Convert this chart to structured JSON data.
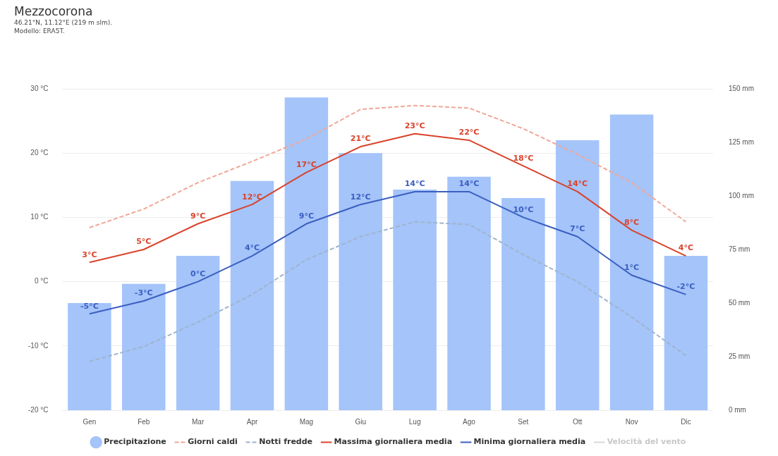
{
  "chart_data": {
    "type": "line",
    "title": "Mezzocorona",
    "subtitle": "46.21°N, 11.12°E (219 m slm).",
    "annotations": [
      "Modello: ERA5T."
    ],
    "categories": [
      "Gen",
      "Feb",
      "Mar",
      "Apr",
      "Mag",
      "Giu",
      "Lug",
      "Ago",
      "Set",
      "Ott",
      "Nov",
      "Dic"
    ],
    "series": [
      {
        "name": "Precipitazione",
        "type": "bar",
        "axis": "y2",
        "color": "#a4c4fa",
        "values": [
          50,
          59,
          72,
          107,
          146,
          120,
          103,
          109,
          99,
          126,
          138,
          72
        ]
      },
      {
        "name": "Giorni caldi",
        "line_style": "dashed",
        "color": "#f0a898",
        "values": [
          8.4,
          11.3,
          15.4,
          18.7,
          22.2,
          26.8,
          27.4,
          27,
          23.8,
          19.8,
          15.4,
          9.3
        ]
      },
      {
        "name": "Notti fredde",
        "line_style": "dashed",
        "color": "#a0b4cc",
        "values": [
          -12.4,
          -10.1,
          -6.3,
          -2,
          3.4,
          7,
          9.3,
          8.9,
          4.2,
          0,
          -5.5,
          -11.5
        ]
      },
      {
        "name": "Massima giornaliera media",
        "line_style": "solid",
        "color": "#d9432b",
        "values": [
          3,
          5,
          9,
          12,
          17,
          21,
          23,
          22,
          18,
          14,
          8,
          4
        ],
        "value_labels": [
          "3°C",
          "5°C",
          "9°C",
          "12°C",
          "17°C",
          "21°C",
          "23°C",
          "22°C",
          "18°C",
          "14°C",
          "8°C",
          "4°C"
        ]
      },
      {
        "name": "Minima giornaliera media",
        "line_style": "solid",
        "color": "#3b5fc0",
        "values": [
          -5,
          -3,
          0,
          4,
          9,
          12,
          14,
          14,
          10,
          7,
          1,
          -2
        ],
        "value_labels": [
          "-5°C",
          "-3°C",
          "0°C",
          "4°C",
          "9°C",
          "12°C",
          "14°C",
          "14°C",
          "10°C",
          "7°C",
          "1°C",
          "-2°C"
        ]
      },
      {
        "name": "Velocità del vento",
        "line_style": "solid",
        "color": "#d8d8d8",
        "values": [
          null,
          null,
          null,
          null,
          null,
          null,
          null,
          null,
          null,
          null,
          null,
          null
        ]
      }
    ],
    "ylim": [
      -20,
      30
    ],
    "yticks": [
      {
        "value": -20,
        "label": "-20 °C"
      },
      {
        "value": -10,
        "label": "-10 °C"
      },
      {
        "value": 0,
        "label": "0 °C"
      },
      {
        "value": 10,
        "label": "10 °C"
      },
      {
        "value": 20,
        "label": "20 °C"
      },
      {
        "value": 30,
        "label": "30 °C"
      }
    ],
    "y2lim": [
      0,
      150
    ],
    "y2ticks": [
      {
        "value": 0,
        "label": "0 mm"
      },
      {
        "value": 25,
        "label": "25 mm"
      },
      {
        "value": 50,
        "label": "50 mm"
      },
      {
        "value": 75,
        "label": "75 mm"
      },
      {
        "value": 100,
        "label": "100 mm"
      },
      {
        "value": 125,
        "label": "125 mm"
      },
      {
        "value": 150,
        "label": "150 mm"
      }
    ],
    "grid": "y",
    "legend": "bottom",
    "marker": "none"
  }
}
